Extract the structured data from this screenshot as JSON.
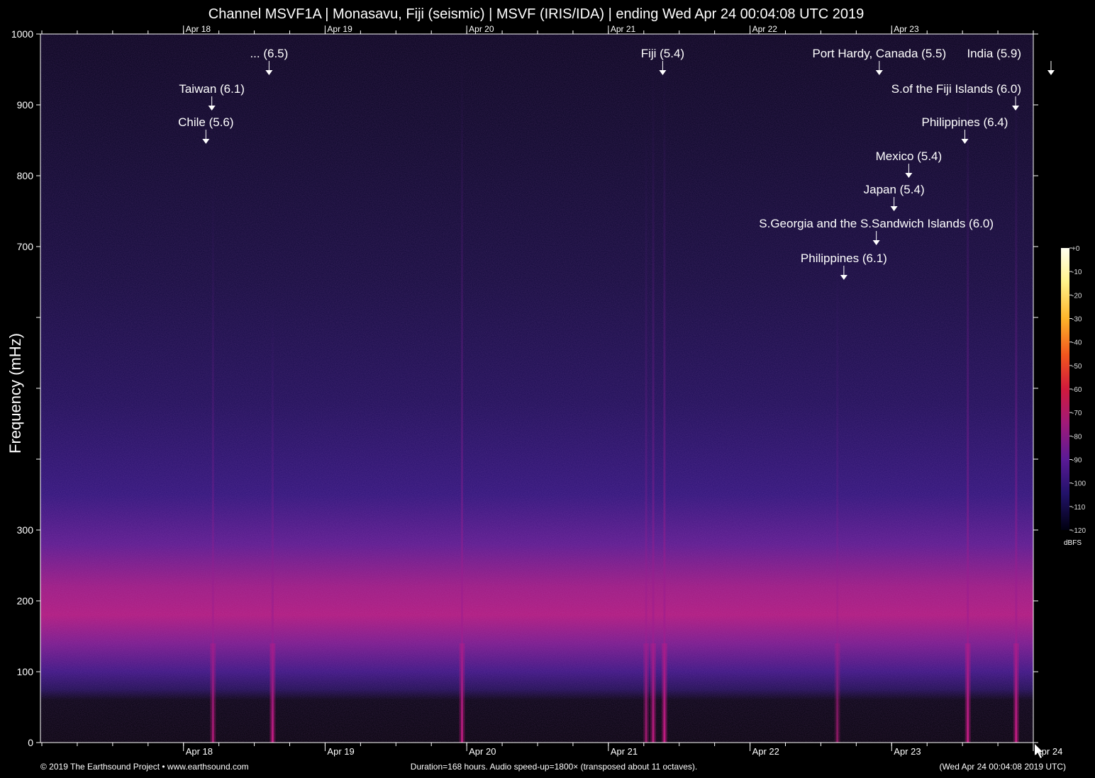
{
  "title": "Channel MSVF1A | Monasavu, Fiji (seismic) | MSVF (IRIS/IDA) | ending Wed Apr 24 00:04:08 UTC 2019",
  "footer": {
    "left": "© 2019 The Earthsound Project • www.earthsound.com",
    "center": "Duration=168 hours. Audio speed-up=1800× (transposed about 11 octaves).",
    "right": "(Wed Apr 24 00:04:08 2019 UTC)"
  },
  "colors": {
    "background": "#000000",
    "plot_bg": "#05031a",
    "noise_band": "#b0187a",
    "accent_dim": "#3a1c8c"
  },
  "chart_data": {
    "type": "heatmap",
    "title": "Channel MSVF1A | Monasavu, Fiji (seismic) | MSVF (IRIS/IDA) | ending Wed Apr 24 00:04:08 UTC 2019",
    "xlabel": "",
    "ylabel": "Frequency (mHz)",
    "x_unit": "hours before end",
    "xlim": [
      0,
      168
    ],
    "ylim": [
      0,
      1000
    ],
    "x_ticks": [
      {
        "label": "Apr 18",
        "t": 24.0
      },
      {
        "label": "Apr 19",
        "t": 48.0
      },
      {
        "label": "Apr 20",
        "t": 72.0
      },
      {
        "label": "Apr 21",
        "t": 96.0
      },
      {
        "label": "Apr 22",
        "t": 120.0
      },
      {
        "label": "Apr 23",
        "t": 144.0
      },
      {
        "label": "Apr 24",
        "t": 168.0
      }
    ],
    "y_ticks": [
      {
        "value": 0,
        "label": "0"
      },
      {
        "value": 100,
        "label": "100"
      },
      {
        "value": 200,
        "label": "200"
      },
      {
        "value": 300,
        "label": "300"
      },
      {
        "value": 400,
        "label": ""
      },
      {
        "value": 500,
        "label": ""
      },
      {
        "value": 600,
        "label": ""
      },
      {
        "value": 700,
        "label": "700"
      },
      {
        "value": 800,
        "label": "800"
      },
      {
        "value": 900,
        "label": "900"
      },
      {
        "value": 1000,
        "label": "1000"
      }
    ],
    "annotations": [
      {
        "text": "... (6.5)",
        "t": 38.5,
        "y": 940
      },
      {
        "text": "Taiwan (6.1)",
        "t": 28.8,
        "y": 890
      },
      {
        "text": "Chile (5.6)",
        "t": 27.8,
        "y": 843
      },
      {
        "text": "Fiji (5.4)",
        "t": 105.2,
        "y": 940
      },
      {
        "text": "Port Hardy, Canada (5.5)",
        "t": 141.9,
        "y": 940
      },
      {
        "text": "India (5.9)",
        "t": 171.0,
        "y": 940
      },
      {
        "text": "S.of the Fiji Islands (6.0)",
        "t": 165.0,
        "y": 890
      },
      {
        "text": "Philippines (6.4)",
        "t": 156.4,
        "y": 843
      },
      {
        "text": "Mexico (5.4)",
        "t": 146.9,
        "y": 795
      },
      {
        "text": "Japan (5.4)",
        "t": 144.4,
        "y": 748
      },
      {
        "text": "S.Georgia and the S.Sandwich Islands (6.0)",
        "t": 141.4,
        "y": 700
      },
      {
        "text": "Philippines (6.1)",
        "t": 135.9,
        "y": 651
      }
    ],
    "events": [
      {
        "t": 29.0,
        "fmax": 800,
        "strength": 0.8
      },
      {
        "t": 39.1,
        "fmax": 620,
        "strength": 1.0
      },
      {
        "t": 71.2,
        "fmax": 980,
        "strength": 0.9
      },
      {
        "t": 102.4,
        "fmax": 880,
        "strength": 0.7
      },
      {
        "t": 103.6,
        "fmax": 960,
        "strength": 0.9
      },
      {
        "t": 105.5,
        "fmax": 960,
        "strength": 1.0
      },
      {
        "t": 134.8,
        "fmax": 700,
        "strength": 0.6
      },
      {
        "t": 156.9,
        "fmax": 960,
        "strength": 1.0
      },
      {
        "t": 165.1,
        "fmax": 960,
        "strength": 1.0
      }
    ],
    "colorbar": {
      "unit": "dBFS",
      "range": [
        -120,
        0
      ],
      "ticks": [
        "+0",
        "-10",
        "-20",
        "-30",
        "-40",
        "-50",
        "-60",
        "-70",
        "-80",
        "-90",
        "-100",
        "-110",
        "-120"
      ]
    },
    "grid": false
  }
}
